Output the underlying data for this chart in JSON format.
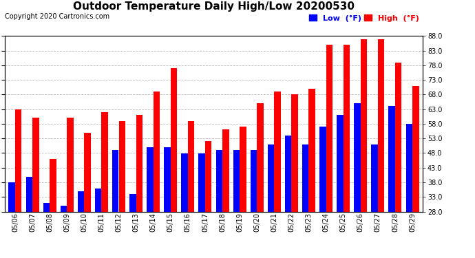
{
  "title": "Outdoor Temperature Daily High/Low 20200530",
  "copyright": "Copyright 2020 Cartronics.com",
  "legend_low_label": "Low  (°F)",
  "legend_high_label": "High  (°F)",
  "ylim": [
    28.0,
    88.0
  ],
  "yticks": [
    28.0,
    33.0,
    38.0,
    43.0,
    48.0,
    53.0,
    58.0,
    63.0,
    68.0,
    73.0,
    78.0,
    83.0,
    88.0
  ],
  "background_color": "#ffffff",
  "grid_color": "#bbbbbb",
  "bar_width": 0.38,
  "dates": [
    "05/06",
    "05/07",
    "05/08",
    "05/09",
    "05/10",
    "05/11",
    "05/12",
    "05/13",
    "05/14",
    "05/15",
    "05/16",
    "05/17",
    "05/18",
    "05/19",
    "05/20",
    "05/21",
    "05/22",
    "05/23",
    "05/24",
    "05/25",
    "05/26",
    "05/27",
    "05/28",
    "05/29"
  ],
  "high": [
    63,
    60,
    46,
    60,
    55,
    62,
    59,
    61,
    69,
    77,
    59,
    52,
    56,
    57,
    65,
    69,
    68,
    70,
    85,
    85,
    87,
    87,
    79,
    71
  ],
  "low": [
    38,
    40,
    31,
    30,
    35,
    36,
    49,
    34,
    50,
    50,
    48,
    48,
    49,
    49,
    49,
    51,
    54,
    51,
    57,
    61,
    65,
    51,
    64,
    58
  ],
  "high_color": "#ff0000",
  "low_color": "#0000ff",
  "title_fontsize": 11,
  "tick_fontsize": 7,
  "copyright_fontsize": 7,
  "legend_fontsize": 8
}
